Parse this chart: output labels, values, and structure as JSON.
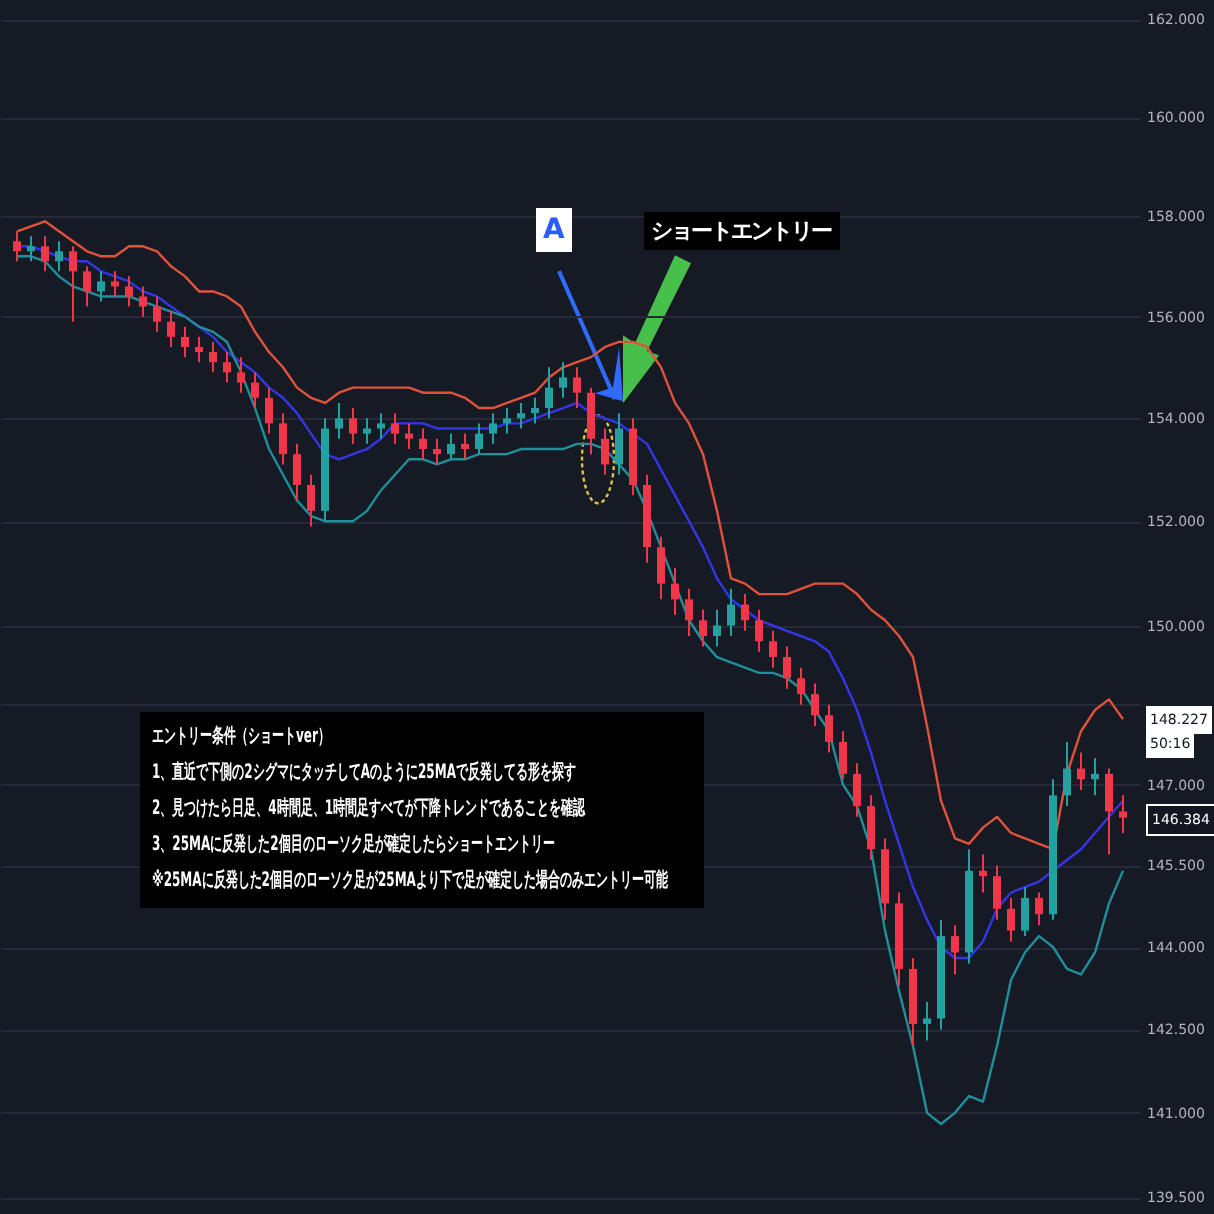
{
  "chart_data": {
    "type": "candlestick",
    "categories": [
      null,
      null,
      null,
      null,
      null,
      null,
      null,
      null,
      null,
      null,
      null,
      null,
      null,
      null,
      null,
      null,
      null,
      null,
      null,
      null,
      null,
      null,
      null,
      null,
      null,
      null,
      null,
      null,
      null,
      null,
      null,
      null,
      null,
      null,
      null,
      null,
      null,
      null,
      null,
      null,
      null,
      null,
      null,
      null,
      null,
      null,
      null,
      null,
      null,
      null,
      null,
      null,
      null,
      null,
      null,
      null,
      null,
      null,
      null,
      null,
      null,
      null,
      null,
      null,
      null,
      null,
      null,
      null,
      null,
      null,
      null,
      null,
      null,
      null,
      null,
      null,
      null,
      null,
      null,
      null
    ],
    "ohlc": [
      [
        157.5,
        157.7,
        157.1,
        157.3
      ],
      [
        157.3,
        157.6,
        157.1,
        157.4
      ],
      [
        157.4,
        157.6,
        156.9,
        157.1
      ],
      [
        157.1,
        157.5,
        156.9,
        157.3
      ],
      [
        157.3,
        157.4,
        155.9,
        156.9
      ],
      [
        156.9,
        157.0,
        156.2,
        156.5
      ],
      [
        156.5,
        156.9,
        156.3,
        156.7
      ],
      [
        156.7,
        156.9,
        156.4,
        156.6
      ],
      [
        156.6,
        156.8,
        156.2,
        156.4
      ],
      [
        156.4,
        156.6,
        156.0,
        156.2
      ],
      [
        156.2,
        156.4,
        155.7,
        155.9
      ],
      [
        155.9,
        156.1,
        155.4,
        155.6
      ],
      [
        155.6,
        155.8,
        155.2,
        155.4
      ],
      [
        155.4,
        155.6,
        155.1,
        155.3
      ],
      [
        155.3,
        155.5,
        154.9,
        155.1
      ],
      [
        155.1,
        155.3,
        154.7,
        154.9
      ],
      [
        154.9,
        155.2,
        154.5,
        154.7
      ],
      [
        154.7,
        154.9,
        154.2,
        154.4
      ],
      [
        154.4,
        154.6,
        153.7,
        153.9
      ],
      [
        153.9,
        154.1,
        153.1,
        153.3
      ],
      [
        153.3,
        153.5,
        152.4,
        152.7
      ],
      [
        152.7,
        152.9,
        151.9,
        152.2
      ],
      [
        152.2,
        154.0,
        152.0,
        153.8
      ],
      [
        153.8,
        154.3,
        153.6,
        154.0
      ],
      [
        154.0,
        154.2,
        153.5,
        153.7
      ],
      [
        153.7,
        154.0,
        153.5,
        153.8
      ],
      [
        153.8,
        154.1,
        153.6,
        153.9
      ],
      [
        153.9,
        154.1,
        153.5,
        153.7
      ],
      [
        153.7,
        153.9,
        153.4,
        153.6
      ],
      [
        153.6,
        153.8,
        153.2,
        153.4
      ],
      [
        153.4,
        153.6,
        153.1,
        153.3
      ],
      [
        153.3,
        153.7,
        153.2,
        153.5
      ],
      [
        153.5,
        153.7,
        153.2,
        153.4
      ],
      [
        153.4,
        153.9,
        153.3,
        153.7
      ],
      [
        153.7,
        154.1,
        153.5,
        153.9
      ],
      [
        153.9,
        154.2,
        153.7,
        154.0
      ],
      [
        154.0,
        154.3,
        153.8,
        154.1
      ],
      [
        154.1,
        154.4,
        153.9,
        154.2
      ],
      [
        154.2,
        155.0,
        154.0,
        154.6
      ],
      [
        154.6,
        155.1,
        154.4,
        154.8
      ],
      [
        154.8,
        155.0,
        154.2,
        154.5
      ],
      [
        154.5,
        154.6,
        153.3,
        153.6
      ],
      [
        153.6,
        153.8,
        152.9,
        153.1
      ],
      [
        153.1,
        154.1,
        152.9,
        153.8
      ],
      [
        153.8,
        154.0,
        152.5,
        152.7
      ],
      [
        152.7,
        152.9,
        151.2,
        151.5
      ],
      [
        151.5,
        151.7,
        150.5,
        150.8
      ],
      [
        150.8,
        151.1,
        150.2,
        150.5
      ],
      [
        150.5,
        150.7,
        149.8,
        150.1
      ],
      [
        150.1,
        150.3,
        149.6,
        149.8
      ],
      [
        149.8,
        150.3,
        149.6,
        150.0
      ],
      [
        150.0,
        150.7,
        149.8,
        150.4
      ],
      [
        150.4,
        150.6,
        149.9,
        150.1
      ],
      [
        150.1,
        150.3,
        149.5,
        149.7
      ],
      [
        149.7,
        149.9,
        149.2,
        149.4
      ],
      [
        149.4,
        149.6,
        148.8,
        149.0
      ],
      [
        149.0,
        149.2,
        148.5,
        148.7
      ],
      [
        148.7,
        148.9,
        148.1,
        148.3
      ],
      [
        148.3,
        148.5,
        147.6,
        147.8
      ],
      [
        147.8,
        148.0,
        147.1,
        147.2
      ],
      [
        147.2,
        147.4,
        146.4,
        146.6
      ],
      [
        146.6,
        146.8,
        145.6,
        145.8
      ],
      [
        145.8,
        146.0,
        144.5,
        144.8
      ],
      [
        144.8,
        145.0,
        143.3,
        143.6
      ],
      [
        143.6,
        143.8,
        142.2,
        142.6
      ],
      [
        142.6,
        143.0,
        142.3,
        142.7
      ],
      [
        142.7,
        144.5,
        142.5,
        144.2
      ],
      [
        144.2,
        144.4,
        143.5,
        143.9
      ],
      [
        143.9,
        145.8,
        143.7,
        145.4
      ],
      [
        145.4,
        145.7,
        145.0,
        145.3
      ],
      [
        145.3,
        145.5,
        144.5,
        144.7
      ],
      [
        144.7,
        144.9,
        144.1,
        144.3
      ],
      [
        144.3,
        145.1,
        144.2,
        144.9
      ],
      [
        144.9,
        145.0,
        144.4,
        144.6
      ],
      [
        144.6,
        147.1,
        144.5,
        146.8
      ],
      [
        146.8,
        147.8,
        146.6,
        147.3
      ],
      [
        147.3,
        147.6,
        146.9,
        147.1
      ],
      [
        147.1,
        147.5,
        146.8,
        147.2
      ],
      [
        147.2,
        147.3,
        145.7,
        146.5
      ],
      [
        146.5,
        146.8,
        146.1,
        146.384
      ]
    ],
    "colors": [
      "#f0364a",
      "#22a1a0",
      "#f0364a",
      "#22a1a0",
      "#f0364a",
      "#f0364a",
      "#22a1a0",
      "#f0364a",
      "#f0364a",
      "#f0364a",
      "#f0364a",
      "#f0364a",
      "#f0364a",
      "#f0364a",
      "#f0364a",
      "#f0364a",
      "#f0364a",
      "#f0364a",
      "#f0364a",
      "#f0364a",
      "#f0364a",
      "#f0364a",
      "#22a1a0",
      "#22a1a0",
      "#f0364a",
      "#22a1a0",
      "#22a1a0",
      "#f0364a",
      "#f0364a",
      "#f0364a",
      "#f0364a",
      "#22a1a0",
      "#f0364a",
      "#22a1a0",
      "#22a1a0",
      "#22a1a0",
      "#22a1a0",
      "#22a1a0",
      "#22a1a0",
      "#22a1a0",
      "#f0364a",
      "#f0364a",
      "#f0364a",
      "#22a1a0",
      "#f0364a",
      "#f0364a",
      "#f0364a",
      "#f0364a",
      "#f0364a",
      "#f0364a",
      "#22a1a0",
      "#22a1a0",
      "#f0364a",
      "#f0364a",
      "#f0364a",
      "#f0364a",
      "#f0364a",
      "#f0364a",
      "#f0364a",
      "#f0364a",
      "#f0364a",
      "#f0364a",
      "#f0364a",
      "#f0364a",
      "#f0364a",
      "#22a1a0",
      "#22a1a0",
      "#f0364a",
      "#22a1a0",
      "#f0364a",
      "#f0364a",
      "#f0364a",
      "#22a1a0",
      "#f0364a",
      "#22a1a0",
      "#22a1a0",
      "#f0364a",
      "#22a1a0",
      "#f0364a",
      "#f0364a"
    ],
    "series": [
      {
        "type": "line",
        "color": "#e0533a",
        "values": [
          157.7,
          157.8,
          157.9,
          157.7,
          157.5,
          157.3,
          157.2,
          157.2,
          157.4,
          157.4,
          157.3,
          157.0,
          156.8,
          156.5,
          156.5,
          156.4,
          156.2,
          155.7,
          155.3,
          155.0,
          154.6,
          154.4,
          154.3,
          154.5,
          154.6,
          154.6,
          154.6,
          154.6,
          154.6,
          154.5,
          154.5,
          154.5,
          154.4,
          154.2,
          154.2,
          154.3,
          154.4,
          154.5,
          154.8,
          155.0,
          155.1,
          155.2,
          155.4,
          155.5,
          155.5,
          155.4,
          155.0,
          154.3,
          153.9,
          153.3,
          152.2,
          150.9,
          150.8,
          150.6,
          150.6,
          150.6,
          150.7,
          150.8,
          150.8,
          150.8,
          150.6,
          150.3,
          150.1,
          149.8,
          149.4,
          148.1,
          146.7,
          146.0,
          145.9,
          146.2,
          146.4,
          146.1,
          146.0,
          145.9,
          145.8,
          147.2,
          148.0,
          148.4,
          148.6,
          148.227
        ]
      },
      {
        "type": "line",
        "color": "#3535e8",
        "values": [
          157.4,
          157.4,
          157.3,
          157.2,
          157.1,
          157.1,
          156.9,
          156.8,
          156.7,
          156.5,
          156.4,
          156.2,
          156.0,
          155.8,
          155.6,
          155.3,
          155.1,
          154.9,
          154.6,
          154.4,
          154.1,
          153.7,
          153.3,
          153.2,
          153.3,
          153.4,
          153.6,
          153.9,
          153.9,
          153.9,
          153.8,
          153.8,
          153.8,
          153.8,
          153.8,
          153.9,
          153.9,
          154.0,
          154.1,
          154.2,
          154.3,
          154.1,
          154.0,
          153.9,
          153.7,
          153.5,
          153.0,
          152.5,
          152.0,
          151.5,
          150.9,
          150.5,
          150.3,
          150.1,
          150.0,
          149.9,
          149.8,
          149.7,
          149.5,
          149.0,
          148.4,
          147.6,
          146.7,
          145.9,
          145.1,
          144.5,
          144.0,
          143.8,
          143.8,
          144.1,
          144.7,
          145.0,
          145.1,
          145.2,
          145.4,
          145.6,
          145.8,
          146.1,
          146.4,
          146.7
        ]
      },
      {
        "type": "line",
        "color": "#1f8f99",
        "values": [
          157.2,
          157.2,
          157.1,
          156.8,
          156.6,
          156.5,
          156.4,
          156.4,
          156.4,
          156.3,
          156.2,
          156.1,
          156.0,
          155.8,
          155.7,
          155.5,
          154.9,
          154.2,
          153.4,
          152.9,
          152.4,
          152.1,
          152.0,
          152.0,
          152.0,
          152.2,
          152.6,
          152.9,
          153.2,
          153.2,
          153.1,
          153.2,
          153.2,
          153.3,
          153.3,
          153.3,
          153.4,
          153.4,
          153.4,
          153.4,
          153.5,
          153.5,
          153.4,
          153.1,
          152.8,
          152.2,
          151.5,
          150.8,
          150.1,
          149.7,
          149.4,
          149.3,
          149.2,
          149.1,
          149.1,
          149.0,
          148.8,
          148.4,
          148.0,
          147.0,
          146.6,
          145.8,
          144.3,
          143.2,
          142.2,
          141.0,
          140.8,
          141.0,
          141.3,
          141.2,
          142.2,
          143.4,
          143.9,
          144.2,
          144.0,
          143.6,
          143.5,
          143.9,
          144.8,
          145.4
        ]
      }
    ],
    "ylim": [
      139.2,
      162.4
    ],
    "log": true,
    "yticks": [
      {
        "value": 139.5,
        "label": "139.500"
      },
      {
        "value": 141,
        "label": "141.000"
      },
      {
        "value": 142.5,
        "label": "142.500"
      },
      {
        "value": 144,
        "label": "144.000"
      },
      {
        "value": 145.5,
        "label": "145.500"
      },
      {
        "value": 147,
        "label": "147.000"
      },
      {
        "value": 148.5,
        "label": null
      },
      {
        "value": 150,
        "label": "150.000"
      },
      {
        "value": 152,
        "label": "152.000"
      },
      {
        "value": 154,
        "label": "154.000"
      },
      {
        "value": 156,
        "label": "156.000"
      },
      {
        "value": 158,
        "label": "158.000"
      },
      {
        "value": 160,
        "label": "160.000"
      },
      {
        "value": 162,
        "label": "162.000"
      }
    ],
    "grid": "y",
    "annotations": [
      "A",
      "ショートエントリー",
      "エントリー条件（ショートver）",
      "1、直近で下側の2シグマにタッチしてAのように25MAで反発してる形を探す",
      "2、見つけたら日足、4時間足、1時間足すべてが下降トレンドであることを確認",
      "3、25MAに反発した2個目のローソク足が確定したらショートエントリー",
      "※25MAに反発した2個目のローソク足が25MAより下で足が確定した場合のみエントリー可能",
      {
        "text": "148.227",
        "y": 148.227
      },
      "50:16",
      {
        "text": "146.384",
        "y": 146.384
      }
    ]
  }
}
